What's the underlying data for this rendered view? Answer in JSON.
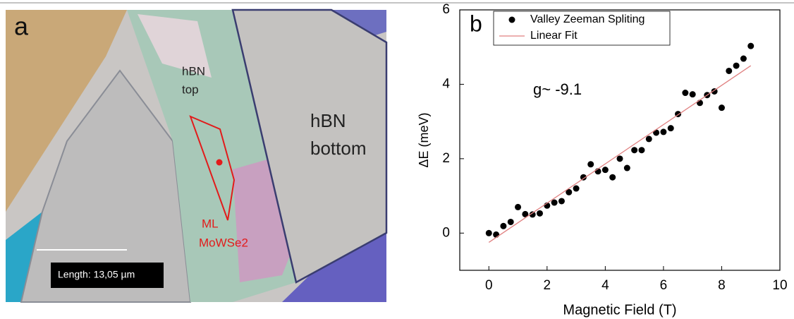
{
  "panel_a": {
    "label": "a",
    "hbn_top": [
      "hBN",
      "top"
    ],
    "hbn_bottom": [
      "hBN",
      "bottom"
    ],
    "sample": [
      "ML",
      "MoWSe2"
    ],
    "scale_bar": "Length: 13,05 µm"
  },
  "chart_data": {
    "type": "scatter",
    "panel_label": "b",
    "x_label": "Magnetic Field (T)",
    "y_label": "ΔE (meV)",
    "annotation": "g~ -9.1",
    "xlim": [
      -1,
      10
    ],
    "ylim": [
      -1,
      6
    ],
    "xticks": [
      0,
      2,
      4,
      6,
      8,
      10
    ],
    "yticks": [
      0,
      2,
      4,
      6
    ],
    "legend": "top-left",
    "series": [
      {
        "name": "Valley Zeeman Spliting",
        "color": "#000000",
        "x": [
          0,
          0.25,
          0.5,
          0.75,
          1,
          1.25,
          1.5,
          1.75,
          2,
          2.25,
          2.5,
          2.75,
          3,
          3.25,
          3.5,
          3.75,
          4,
          4.25,
          4.5,
          4.75,
          5,
          5.25,
          5.5,
          5.75,
          6,
          6.25,
          6.5,
          6.75,
          7,
          7.25,
          7.5,
          7.75,
          8,
          8.25,
          8.5,
          8.75,
          9
        ],
        "values": [
          0,
          -0.04,
          0.19,
          0.3,
          0.7,
          0.51,
          0.5,
          0.53,
          0.74,
          0.82,
          0.86,
          1.1,
          1.2,
          1.5,
          1.85,
          1.66,
          1.7,
          1.5,
          2.0,
          1.75,
          2.23,
          2.23,
          2.53,
          2.7,
          2.72,
          2.82,
          3.2,
          3.77,
          3.73,
          3.5,
          3.71,
          3.81,
          3.37,
          4.36,
          4.5,
          4.69,
          5.03
        ]
      },
      {
        "name": "Linear Fit",
        "color": "#e08080",
        "x": [
          0,
          9
        ],
        "values": [
          -0.25,
          4.5
        ]
      }
    ]
  }
}
